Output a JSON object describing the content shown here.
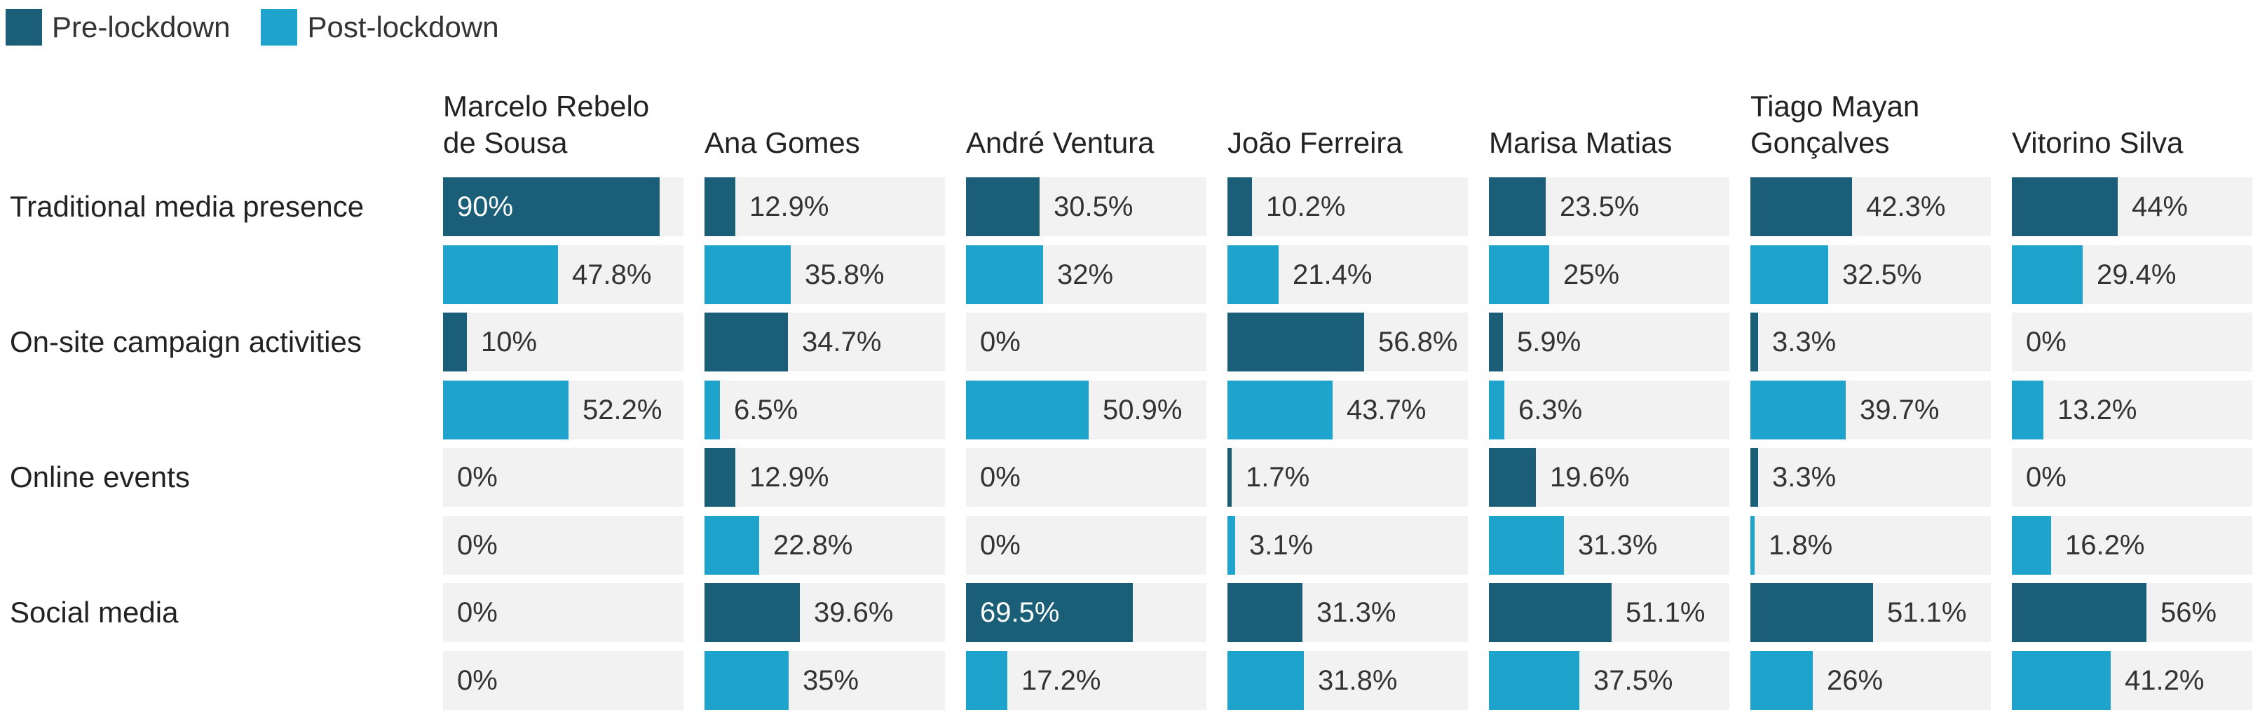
{
  "colors": {
    "pre": "#1b5e78",
    "post": "#1ea3cd",
    "cell_bg": "#f2f2f2"
  },
  "legend": [
    {
      "label": "Pre-lockdown",
      "color": "#1b5e78"
    },
    {
      "label": "Post-lockdown",
      "color": "#1ea3cd"
    }
  ],
  "chart_data": {
    "type": "bar",
    "orientation": "horizontal",
    "layout": "small-multiples",
    "xlim": [
      0,
      100
    ],
    "unit": "%",
    "panels": [
      "Marcelo Rebelo\nde Sousa",
      "Ana Gomes",
      "André Ventura",
      "João Ferreira",
      "Marisa Matias",
      "Tiago Mayan\nGonçalves",
      "Vitorino Silva"
    ],
    "categories": [
      "Traditional media presence",
      "On-site campaign activities",
      "Online events",
      "Social media"
    ],
    "series": [
      {
        "name": "Pre-lockdown",
        "values": [
          [
            90,
            12.9,
            30.5,
            10.2,
            23.5,
            42.3,
            44
          ],
          [
            10,
            34.7,
            0,
            56.8,
            5.9,
            3.3,
            0
          ],
          [
            0,
            12.9,
            0,
            1.7,
            19.6,
            3.3,
            0
          ],
          [
            0,
            39.6,
            69.5,
            31.3,
            51.1,
            51.1,
            56
          ]
        ]
      },
      {
        "name": "Post-lockdown",
        "values": [
          [
            47.8,
            35.8,
            32,
            21.4,
            25,
            32.5,
            29.4
          ],
          [
            52.2,
            6.5,
            50.9,
            43.7,
            6.3,
            39.7,
            13.2
          ],
          [
            0,
            22.8,
            0,
            3.1,
            31.3,
            1.8,
            16.2
          ],
          [
            0,
            35,
            17.2,
            31.8,
            37.5,
            26,
            41.2
          ]
        ]
      }
    ]
  }
}
